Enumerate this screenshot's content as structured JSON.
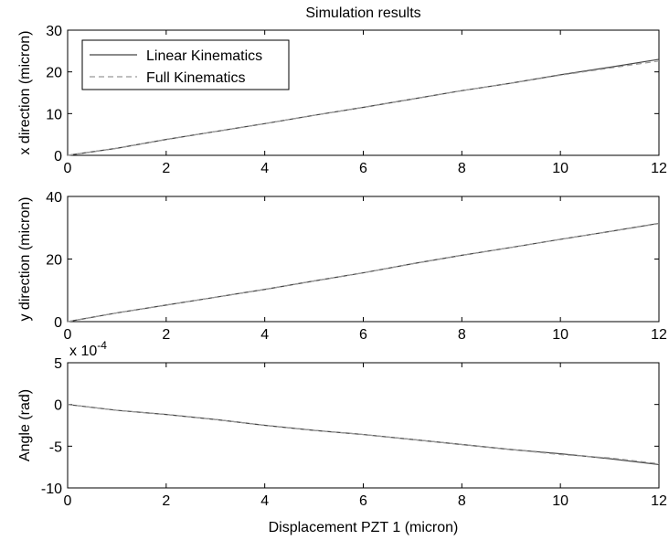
{
  "chart_data": [
    {
      "type": "line",
      "title": "Simulation results",
      "xlabel": "",
      "ylabel": "x direction (micron)",
      "xlim": [
        0,
        12
      ],
      "ylim": [
        0,
        30
      ],
      "xticks": [
        "0",
        "2",
        "4",
        "6",
        "8",
        "10",
        "12"
      ],
      "yticks": [
        "0",
        "10",
        "20",
        "30"
      ],
      "exponent_label": "",
      "grid": false,
      "legend_position": "top-left",
      "series": [
        {
          "name": "Linear Kinematics",
          "style": "solid",
          "color": "#444444",
          "x": [
            0,
            1,
            2,
            3,
            4,
            5,
            6,
            7,
            8,
            9,
            10,
            11,
            12
          ],
          "y": [
            0,
            1.7,
            3.8,
            5.7,
            7.6,
            9.6,
            11.5,
            13.5,
            15.5,
            17.3,
            19.3,
            21.1,
            23.0
          ]
        },
        {
          "name": "Full Kinematics",
          "style": "dashed",
          "color": "#999999",
          "x": [
            0,
            1,
            2,
            3,
            4,
            5,
            6,
            7,
            8,
            9,
            10,
            11,
            12
          ],
          "y": [
            0,
            1.7,
            3.8,
            5.7,
            7.6,
            9.6,
            11.5,
            13.5,
            15.5,
            17.3,
            19.2,
            20.9,
            22.6
          ]
        }
      ]
    },
    {
      "type": "line",
      "title": "",
      "xlabel": "",
      "ylabel": "y direction (micron)",
      "xlim": [
        0,
        12
      ],
      "ylim": [
        0,
        40
      ],
      "xticks": [
        "0",
        "2",
        "4",
        "6",
        "8",
        "10",
        "12"
      ],
      "yticks": [
        "0",
        "20",
        "40"
      ],
      "exponent_label": "",
      "grid": false,
      "series": [
        {
          "name": "Linear Kinematics",
          "style": "solid",
          "color": "#444444",
          "x": [
            0,
            1,
            2,
            3,
            4,
            5,
            6,
            7,
            8,
            9,
            10,
            11,
            12
          ],
          "y": [
            0,
            2.8,
            5.3,
            7.8,
            10.3,
            13.0,
            15.6,
            18.5,
            21.2,
            23.7,
            26.3,
            28.8,
            31.4
          ]
        },
        {
          "name": "Full Kinematics",
          "style": "dashed",
          "color": "#999999",
          "x": [
            0,
            1,
            2,
            3,
            4,
            5,
            6,
            7,
            8,
            9,
            10,
            11,
            12
          ],
          "y": [
            0,
            2.8,
            5.3,
            7.8,
            10.3,
            13.0,
            15.6,
            18.5,
            21.2,
            23.7,
            26.3,
            28.8,
            31.3
          ]
        }
      ]
    },
    {
      "type": "line",
      "title": "",
      "xlabel": "Displacement PZT 1 (micron)",
      "ylabel": "Angle (rad)",
      "xlim": [
        0,
        12
      ],
      "ylim": [
        -10,
        5
      ],
      "xticks": [
        "0",
        "2",
        "4",
        "6",
        "8",
        "10",
        "12"
      ],
      "yticks": [
        "-10",
        "-5",
        "0",
        "5"
      ],
      "exponent_label": "x 10",
      "exponent_power": "-4",
      "grid": false,
      "series": [
        {
          "name": "Linear Kinematics",
          "style": "solid",
          "color": "#444444",
          "x": [
            0,
            1,
            2,
            3,
            4,
            5,
            6,
            7,
            8,
            9,
            10,
            11,
            12
          ],
          "y": [
            0,
            -0.7,
            -1.2,
            -1.8,
            -2.5,
            -3.1,
            -3.6,
            -4.2,
            -4.8,
            -5.4,
            -5.9,
            -6.5,
            -7.2
          ]
        },
        {
          "name": "Full Kinematics",
          "style": "dashed",
          "color": "#999999",
          "x": [
            0,
            1,
            2,
            3,
            4,
            5,
            6,
            7,
            8,
            9,
            10,
            11,
            12
          ],
          "y": [
            0,
            -0.7,
            -1.2,
            -1.8,
            -2.5,
            -3.1,
            -3.6,
            -4.2,
            -4.8,
            -5.4,
            -6.0,
            -6.4,
            -7.1
          ]
        }
      ]
    }
  ]
}
